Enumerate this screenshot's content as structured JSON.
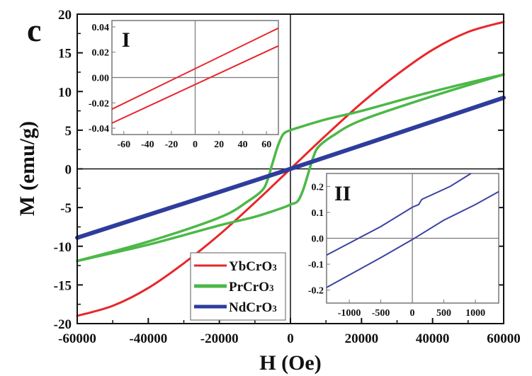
{
  "chart_data": [
    {
      "type": "line",
      "panel_label": "c",
      "xlabel": "H (Oe)",
      "ylabel": "M (emu/g)",
      "xlim": [
        -60000,
        60000
      ],
      "ylim": [
        -20,
        20
      ],
      "xticks": [
        -60000,
        -40000,
        -20000,
        0,
        20000,
        40000,
        60000
      ],
      "yticks": [
        -20,
        -15,
        -10,
        -5,
        0,
        5,
        10,
        15,
        20
      ],
      "legend_position": "bottom-center",
      "series": [
        {
          "name": "YbCrO3",
          "name_base": "YbCrO",
          "name_sub": "3",
          "color": "#e8262b",
          "x": [
            -60000,
            -50000,
            -40000,
            -30000,
            -20000,
            -10000,
            0,
            10000,
            20000,
            30000,
            40000,
            50000,
            60000
          ],
          "y": [
            -19.0,
            -17.7,
            -15.4,
            -12.2,
            -8.5,
            -4.35,
            0,
            4.35,
            8.5,
            12.2,
            15.4,
            17.7,
            19.0
          ]
        },
        {
          "name": "PrCrO3",
          "name_base": "PrCrO",
          "name_sub": "3",
          "color": "#4cb848",
          "branches": [
            {
              "x": [
                60000,
                40000,
                20000,
                10000,
                2000,
                0,
                -2000,
                -3500,
                -5000,
                -6500,
                -8000,
                -12000,
                -20000,
                -40000,
                -60000
              ],
              "y": [
                12.2,
                10.0,
                7.5,
                6.4,
                5.3,
                5.0,
                4.5,
                3.0,
                0.8,
                -1.5,
                -2.8,
                -4.2,
                -6.3,
                -9.4,
                -11.9
              ]
            },
            {
              "x": [
                -60000,
                -40000,
                -20000,
                -10000,
                -2000,
                0,
                2000,
                3500,
                5000,
                6500,
                8000,
                12000,
                20000,
                40000,
                60000
              ],
              "y": [
                -11.9,
                -9.8,
                -7.3,
                -6.2,
                -5.0,
                -4.6,
                -4.2,
                -2.8,
                -0.6,
                1.6,
                2.9,
                4.3,
                6.3,
                9.4,
                12.2
              ]
            }
          ]
        },
        {
          "name": "NdCrO3",
          "name_base": "NdCrO",
          "name_sub": "3",
          "color": "#2e3d9c",
          "x": [
            -60000,
            0,
            60000
          ],
          "y": [
            -8.9,
            0,
            9.2
          ]
        }
      ]
    },
    {
      "type": "line",
      "panel_label": "I",
      "xlim": [
        -70,
        70
      ],
      "ylim": [
        -0.045,
        0.045
      ],
      "xticks": [
        -60,
        -40,
        -20,
        0,
        20,
        40,
        60
      ],
      "ytick_labels": [
        "0.04",
        "0.02",
        "0.00",
        "-0.02",
        "-0.04"
      ],
      "yticks": [
        0.04,
        0.02,
        0.0,
        -0.02,
        -0.04
      ],
      "series": [
        {
          "name": "YbCrO3 upper",
          "color": "#e8262b",
          "x": [
            -70,
            70
          ],
          "y": [
            -0.025,
            0.039
          ]
        },
        {
          "name": "YbCrO3 lower",
          "color": "#e8262b",
          "x": [
            -70,
            70
          ],
          "y": [
            -0.036,
            0.025
          ]
        }
      ]
    },
    {
      "type": "line",
      "panel_label": "II",
      "xlim": [
        -1360,
        1370
      ],
      "ylim": [
        -0.25,
        0.25
      ],
      "xticks": [
        -1000,
        -500,
        0,
        500,
        1000
      ],
      "yticks": [
        0.2,
        0.1,
        0.0,
        -0.1,
        -0.2
      ],
      "ytick_labels": [
        "0.2",
        "0.1",
        "0.0",
        "-0.1",
        "-0.2"
      ],
      "series": [
        {
          "name": "NdCrO3 upper",
          "color": "#3a43a0",
          "x": [
            -1360,
            -500,
            0,
            100,
            150,
            600,
            930
          ],
          "y": [
            -0.065,
            0.045,
            0.12,
            0.13,
            0.15,
            0.2,
            0.25
          ]
        },
        {
          "name": "NdCrO3 lower",
          "color": "#3a43a0",
          "x": [
            -1360,
            -500,
            0,
            500,
            1000,
            1370
          ],
          "y": [
            -0.19,
            -0.075,
            -0.005,
            0.07,
            0.13,
            0.18
          ]
        }
      ]
    }
  ]
}
